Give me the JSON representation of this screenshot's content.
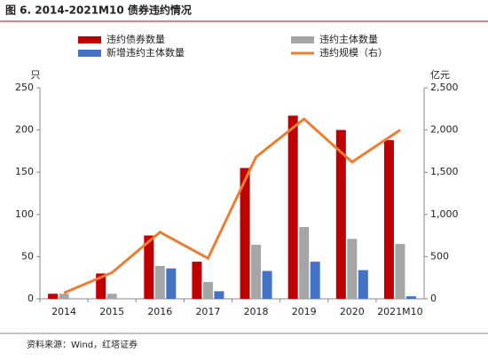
{
  "chart_data": {
    "type": "bar",
    "title": "图 6. 2014-2021M10 债券违约情况",
    "y_label": "只",
    "y2_label": "亿元",
    "source": "资料来源：Wind，红塔证券",
    "categories": [
      "2014",
      "2015",
      "2016",
      "2017",
      "2018",
      "2019",
      "2020",
      "2021M10"
    ],
    "series": [
      {
        "name": "违约债券数量",
        "color": "#c00000",
        "type": "bar",
        "values": [
          6,
          30,
          75,
          44,
          155,
          217,
          200,
          188
        ]
      },
      {
        "name": "违约主体数量",
        "color": "#a5a5a5",
        "type": "bar",
        "values": [
          6,
          6,
          39,
          20,
          64,
          85,
          71,
          65
        ]
      },
      {
        "name": "新增违约主体数量",
        "color": "#4472c4",
        "type": "bar",
        "values": [
          0,
          0,
          36,
          9,
          33,
          44,
          34,
          3
        ]
      },
      {
        "name": "违约规模（右）",
        "color": "#ed7d31",
        "type": "line",
        "axis": "y2",
        "values": [
          70,
          310,
          790,
          480,
          1680,
          2130,
          1620,
          2000
        ]
      }
    ],
    "ylim": [
      0,
      250
    ],
    "yticks": [
      0,
      50,
      100,
      150,
      200,
      250
    ],
    "y2lim": [
      0,
      2500
    ],
    "y2ticks": [
      0,
      500,
      {
        "value": 1000,
        "label": "1,000"
      },
      {
        "value": 1500,
        "label": "1,500"
      },
      {
        "value": 2000,
        "label": "2,000"
      },
      {
        "value": 2500,
        "label": "2,500"
      }
    ]
  }
}
